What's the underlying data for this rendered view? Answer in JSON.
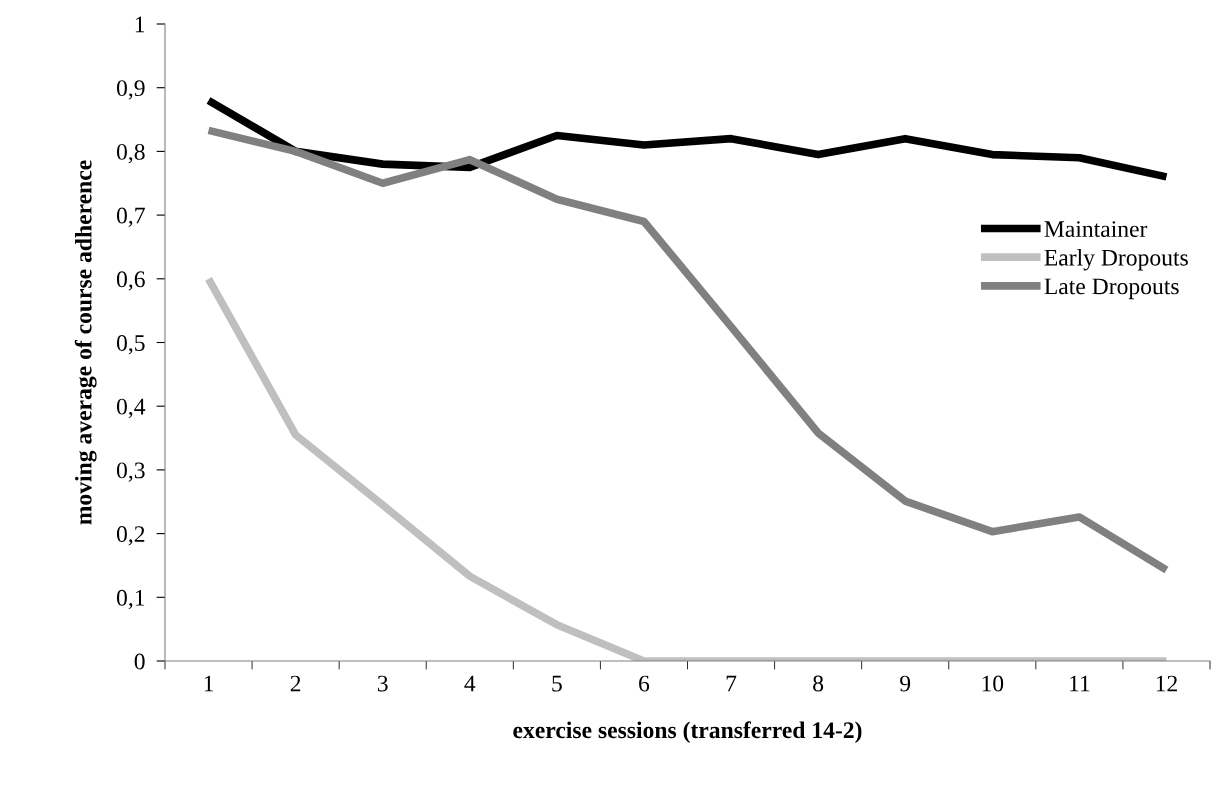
{
  "chart_data": {
    "type": "line",
    "xlabel": "exercise sessions (transferred 14-2)",
    "ylabel": "moving average of course adherence",
    "categories": [
      "1",
      "2",
      "3",
      "4",
      "5",
      "6",
      "7",
      "8",
      "9",
      "10",
      "11",
      "12"
    ],
    "series": [
      {
        "name": "Maintainer",
        "color": "#000000",
        "values": [
          0.88,
          0.8,
          0.78,
          0.775,
          0.825,
          0.81,
          0.82,
          0.795,
          0.82,
          0.795,
          0.79,
          0.76
        ]
      },
      {
        "name": "Early Dropouts",
        "color": "#bfbfbf",
        "values": [
          0.6,
          0.355,
          0.245,
          0.133,
          0.057,
          0,
          0,
          0,
          0,
          0,
          0,
          0
        ]
      },
      {
        "name": "Late Dropouts",
        "color": "#808080",
        "values": [
          0.833,
          0.8,
          0.75,
          0.787,
          0.725,
          0.69,
          0.525,
          0.358,
          0.251,
          0.203,
          0.226,
          0.143
        ]
      }
    ],
    "ylim": [
      0,
      1
    ],
    "yticks": [
      {
        "value": 0,
        "label": "0"
      },
      {
        "value": 0.1,
        "label": "0,1"
      },
      {
        "value": 0.2,
        "label": "0,2"
      },
      {
        "value": 0.3,
        "label": "0,3"
      },
      {
        "value": 0.4,
        "label": "0,4"
      },
      {
        "value": 0.5,
        "label": "0,5"
      },
      {
        "value": 0.6,
        "label": "0,6"
      },
      {
        "value": 0.7,
        "label": "0,7"
      },
      {
        "value": 0.8,
        "label": "0,8"
      },
      {
        "value": 0.9,
        "label": "0,9"
      },
      {
        "value": 1,
        "label": "1"
      }
    ],
    "legend": "right",
    "grid": false,
    "marker": "none",
    "line_style": "solid"
  }
}
